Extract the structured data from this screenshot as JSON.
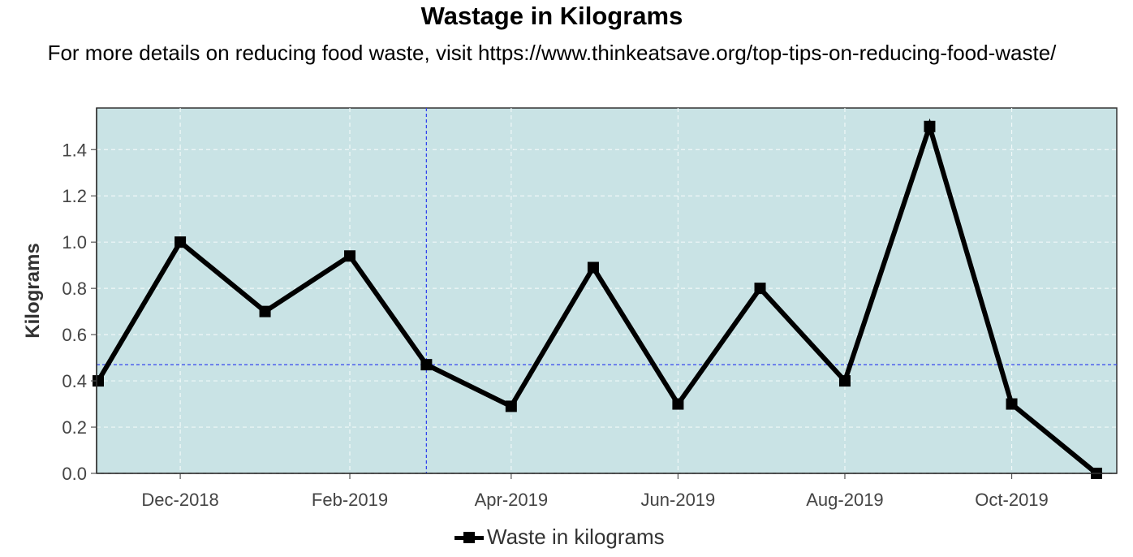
{
  "chart_data": {
    "type": "line",
    "title": "Wastage in Kilograms",
    "subtitle": "For more details on reducing food waste, visit https://www.thinkeatsave.org/top-tips-on-reducing-food-waste/",
    "xlabel": "",
    "ylabel": "Kilograms",
    "x": [
      "2018-11-01",
      "2018-12-01",
      "2019-01-01",
      "2019-02-01",
      "2019-03-01",
      "2019-04-01",
      "2019-05-01",
      "2019-06-01",
      "2019-07-01",
      "2019-08-01",
      "2019-09-01",
      "2019-10-01",
      "2019-11-01"
    ],
    "x_tick_labels": [
      "Dec-2018",
      "Feb-2019",
      "Apr-2019",
      "Jun-2019",
      "Aug-2019",
      "Oct-2019"
    ],
    "x_tick_dates": [
      "2018-12-01",
      "2019-02-01",
      "2019-04-01",
      "2019-06-01",
      "2019-08-01",
      "2019-10-01"
    ],
    "y_ticks": [
      "0.0",
      "0.2",
      "0.4",
      "0.6",
      "0.8",
      "1.0",
      "1.2",
      "1.4"
    ],
    "ylim": [
      0,
      1.58
    ],
    "xlim": [
      "2018-11-01",
      "2019-11-01"
    ],
    "grid": true,
    "series": [
      {
        "name": "Waste in kilograms",
        "values": [
          0.4,
          1.0,
          0.7,
          0.94,
          0.47,
          0.29,
          0.89,
          0.3,
          0.8,
          0.4,
          1.5,
          0.3,
          0.0
        ]
      }
    ],
    "crosshair": {
      "x": "2019-03-01",
      "y": 0.47
    },
    "legend_position": "bottom",
    "colors": {
      "panel": "#c9e3e5",
      "line": "#000000",
      "crosshair": "#3344ee",
      "grid": "#f0f8f8"
    }
  }
}
